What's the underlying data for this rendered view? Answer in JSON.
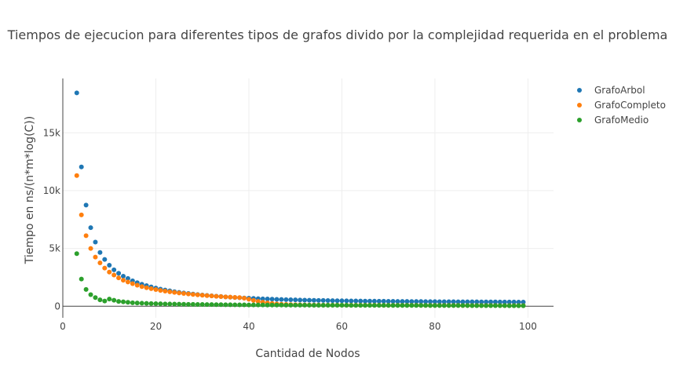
{
  "chart_data": {
    "type": "scatter",
    "title": "Tiempos de ejecucion para diferentes tipos de grafos divido por la complejidad requerida en el problema",
    "xlabel": "Cantidad de Nodos",
    "ylabel": "Tiempo en ns/(n*m*log(C))",
    "xlim": [
      0,
      105.5
    ],
    "ylim": [
      -1000,
      19700
    ],
    "x_ticks": [
      0,
      20,
      40,
      60,
      80,
      100
    ],
    "x_tick_labels": [
      "0",
      "20",
      "40",
      "60",
      "80",
      "100"
    ],
    "y_ticks": [
      0,
      5000,
      10000,
      15000
    ],
    "y_tick_labels": [
      "0",
      "5k",
      "10k",
      "15k"
    ],
    "grid": true,
    "legend_position": "top-right",
    "x_start": 3,
    "x_end": 99,
    "series": [
      {
        "name": "GrafoArbol",
        "color": "#1f77b4",
        "values": [
          18450,
          12050,
          8750,
          6800,
          5550,
          4650,
          4050,
          3550,
          3150,
          2850,
          2600,
          2400,
          2200,
          2040,
          1900,
          1780,
          1670,
          1570,
          1480,
          1400,
          1330,
          1260,
          1200,
          1150,
          1100,
          1050,
          1010,
          970,
          935,
          900,
          870,
          840,
          810,
          785,
          760,
          737,
          715,
          695,
          676,
          658,
          641,
          625,
          610,
          596,
          583,
          571,
          560,
          549,
          539,
          530,
          521,
          513,
          505,
          498,
          491,
          484,
          478,
          472,
          466,
          461,
          456,
          451,
          446,
          442,
          438,
          434,
          430,
          426,
          423,
          420,
          417,
          414,
          411,
          408,
          405,
          402,
          400,
          398,
          395,
          393,
          391,
          389,
          387,
          385,
          383,
          381,
          379,
          377,
          375,
          373,
          371,
          369,
          367,
          365,
          363,
          361,
          359
        ]
      },
      {
        "name": "GrafoCompleto",
        "color": "#ff7f0e",
        "values": [
          11300,
          7900,
          6100,
          5000,
          4250,
          3750,
          3300,
          2950,
          2700,
          2450,
          2250,
          2100,
          1950,
          1820,
          1700,
          1600,
          1520,
          1440,
          1370,
          1310,
          1250,
          1200,
          1150,
          1100,
          1060,
          1020,
          985,
          950,
          920,
          890,
          860,
          835,
          810,
          790,
          765,
          745,
          700,
          600,
          500,
          420,
          350,
          290,
          240,
          200,
          170,
          150,
          135,
          125,
          118,
          112,
          107,
          103,
          100,
          98,
          96,
          94,
          92,
          90,
          89,
          88,
          87,
          86,
          85,
          84,
          83,
          82,
          81,
          80,
          79,
          78,
          77,
          76,
          75,
          74,
          73,
          72,
          71,
          70,
          69,
          68,
          67,
          66,
          65,
          64,
          63,
          62,
          61,
          60,
          59,
          58,
          57,
          56,
          55,
          54,
          53,
          52,
          51
        ]
      },
      {
        "name": "GrafoMedio",
        "color": "#2ca02c",
        "values": [
          4550,
          2350,
          1450,
          1000,
          750,
          550,
          450,
          620,
          520,
          420,
          380,
          340,
          300,
          280,
          260,
          245,
          230,
          220,
          210,
          200,
          192,
          185,
          178,
          172,
          166,
          160,
          155,
          150,
          146,
          142,
          138,
          134,
          130,
          127,
          124,
          121,
          118,
          115,
          112,
          110,
          108,
          106,
          104,
          102,
          100,
          98,
          96,
          94,
          92,
          91,
          90,
          89,
          88,
          87,
          86,
          85,
          84,
          83,
          82,
          81,
          80,
          79,
          78,
          77,
          76,
          75,
          74,
          73,
          72,
          71,
          70,
          69,
          68,
          67,
          66,
          65,
          64,
          63,
          62,
          61,
          60,
          59,
          58,
          57,
          56,
          55,
          54,
          53,
          52,
          51,
          50,
          49,
          48,
          47,
          46,
          45,
          44
        ]
      }
    ]
  }
}
